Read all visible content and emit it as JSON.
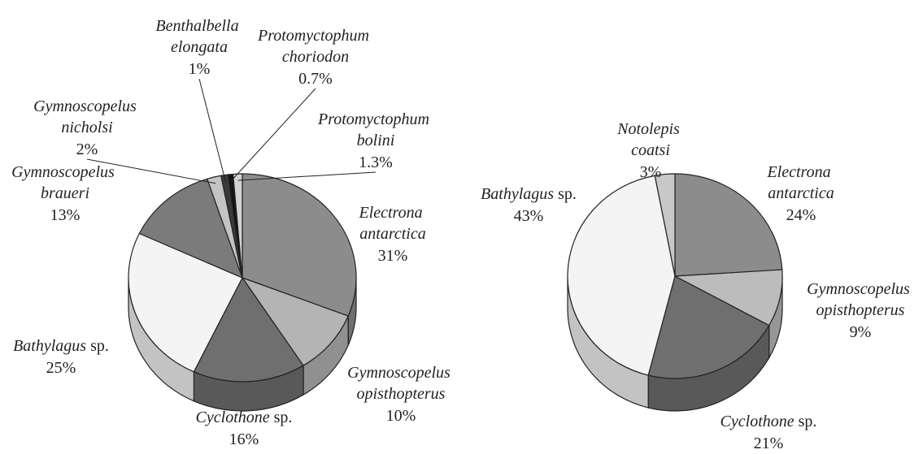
{
  "chart_data": [
    {
      "type": "pie",
      "categories": [
        "Electrona antarctica",
        "Gymnoscopelus opisthopterus",
        "Cyclothone sp.",
        "Bathylagus sp.",
        "Gymnoscopelus braueri",
        "Gymnoscopelus nicholsi",
        "Benthalbella elongata",
        "Protomyctophum choriodon",
        "Protomyctophum bolini"
      ],
      "values": [
        31,
        10,
        16,
        25,
        13,
        2,
        1,
        0.7,
        1.3
      ],
      "value_labels": [
        "31%",
        "10%",
        "16%",
        "25%",
        "13%",
        "2%",
        "1%",
        "0.7%",
        "1.3%"
      ],
      "colors": [
        "#8c8c8c",
        "#b4b4b4",
        "#6f6f6f",
        "#f4f4f4",
        "#7b7b7b",
        "#c4c4c4",
        "#3a3a3a",
        "#141414",
        "#d2d2d2"
      ]
    },
    {
      "type": "pie",
      "categories": [
        "Electrona antarctica",
        "Gymnoscopelus opisthopterus",
        "Cyclothone sp.",
        "Bathylagus sp.",
        "Notolepis coatsi"
      ],
      "values": [
        24,
        9,
        21,
        43,
        3
      ],
      "value_labels": [
        "24%",
        "9%",
        "21%",
        "43%",
        "3%"
      ],
      "colors": [
        "#8c8c8c",
        "#bcbcbc",
        "#6f6f6f",
        "#f4f4f4",
        "#c8c8c8"
      ]
    }
  ]
}
